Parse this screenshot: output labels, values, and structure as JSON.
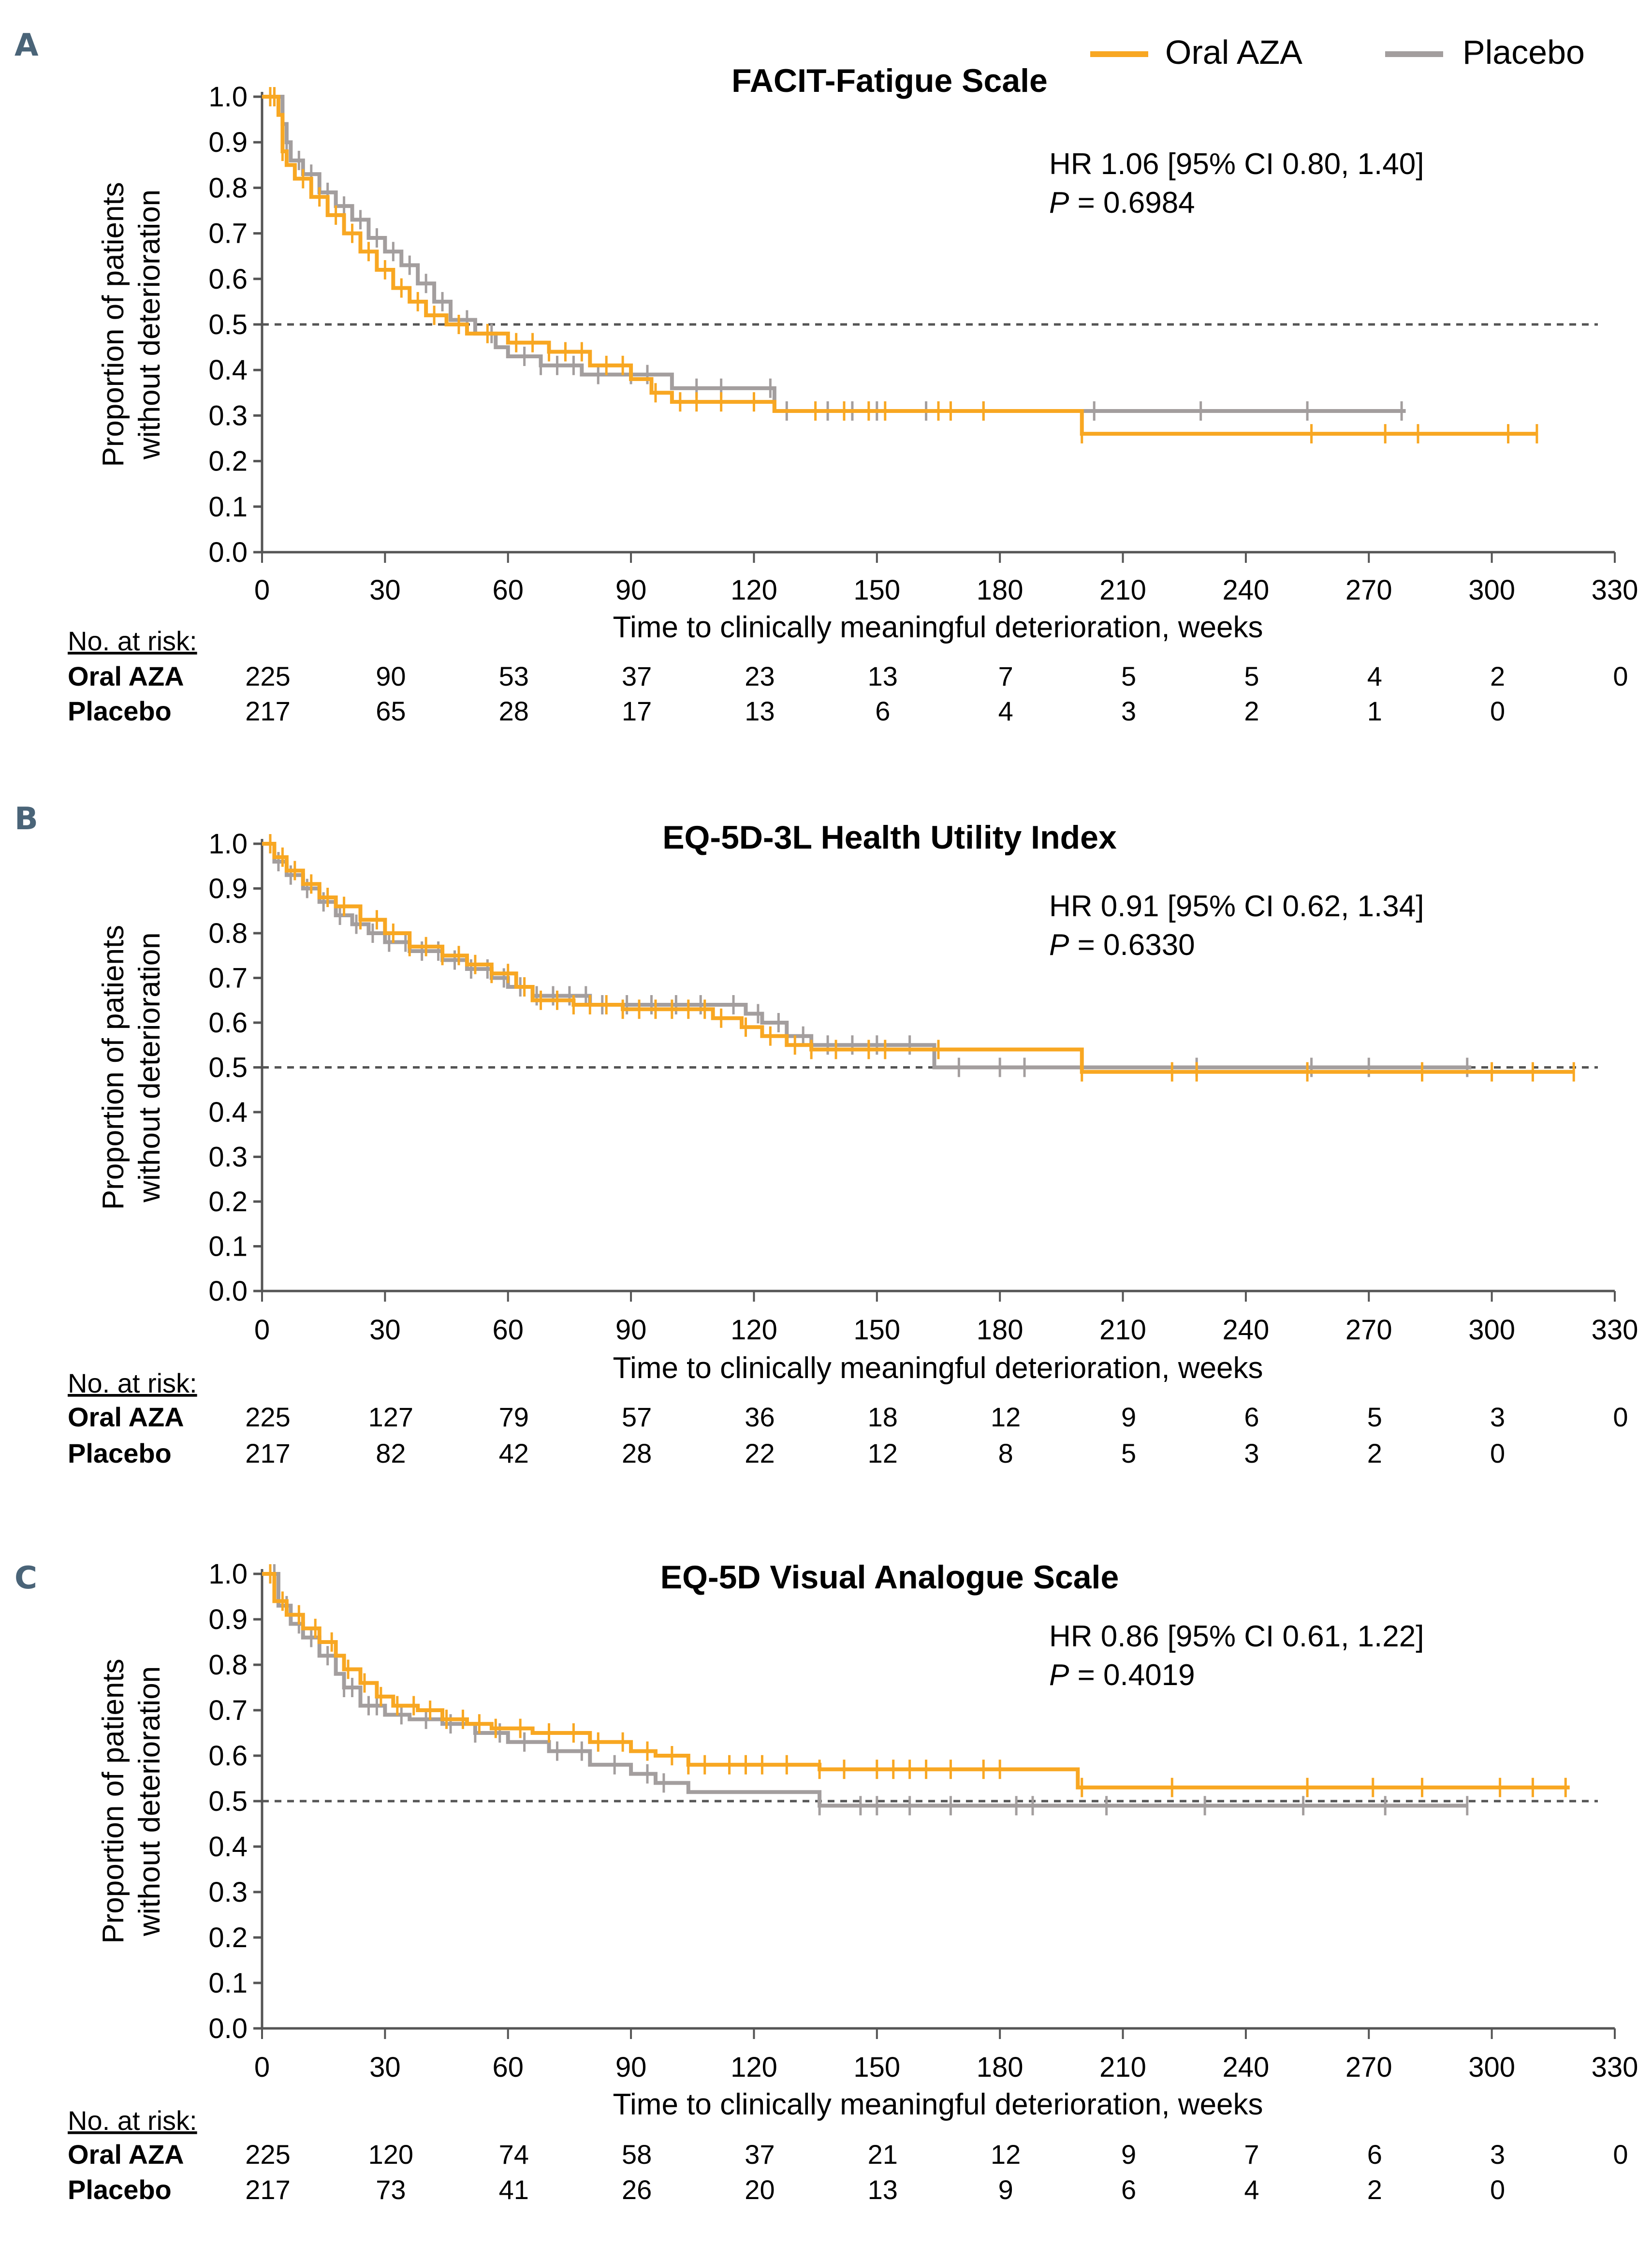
{
  "legend": {
    "series": [
      {
        "name": "Oral AZA",
        "color": "#F8A722"
      },
      {
        "name": "Placebo",
        "color": "#A39E9E"
      }
    ]
  },
  "colors": {
    "axis": "#555555",
    "reference_line": "#555555",
    "panel_letter": "#4A6478"
  },
  "chart_data": [
    {
      "panel": "A",
      "type": "line",
      "title": "FACIT-Fatigue Scale",
      "xlabel": "Time to clinically meaningful deterioration, weeks",
      "ylabel": "Proportion of patients without deterioration",
      "xlim": [
        0,
        330
      ],
      "ylim": [
        0,
        1.0
      ],
      "xticks": [
        0,
        30,
        60,
        90,
        120,
        150,
        180,
        210,
        240,
        270,
        300,
        330
      ],
      "yticks": [
        "0.0",
        "0.1",
        "0.2",
        "0.3",
        "0.4",
        "0.5",
        "0.6",
        "0.7",
        "0.8",
        "0.9",
        "1.0"
      ],
      "reference_line": 0.5,
      "hr_text": "HR 1.06 [95% CI 0.80, 1.40]",
      "p_label": "P",
      "p_value": " = 0.6984",
      "series": [
        {
          "name": "Oral AZA",
          "steps": [
            [
              0,
              1.0
            ],
            [
              4,
              0.96
            ],
            [
              5,
              0.88
            ],
            [
              6,
              0.85
            ],
            [
              8,
              0.82
            ],
            [
              12,
              0.78
            ],
            [
              16,
              0.74
            ],
            [
              20,
              0.7
            ],
            [
              24,
              0.66
            ],
            [
              28,
              0.62
            ],
            [
              32,
              0.58
            ],
            [
              36,
              0.55
            ],
            [
              40,
              0.52
            ],
            [
              45,
              0.5
            ],
            [
              50,
              0.48
            ],
            [
              60,
              0.46
            ],
            [
              70,
              0.44
            ],
            [
              80,
              0.41
            ],
            [
              90,
              0.38
            ],
            [
              95,
              0.35
            ],
            [
              100,
              0.33
            ],
            [
              125,
              0.31
            ],
            [
              200,
              0.26
            ],
            [
              311,
              0.26
            ]
          ],
          "censor": [
            2,
            3,
            5,
            10,
            14,
            18,
            22,
            26,
            30,
            34,
            38,
            42,
            48,
            55,
            62,
            66,
            70,
            74,
            78,
            84,
            88,
            96,
            102,
            106,
            112,
            120,
            135,
            142,
            148,
            152,
            165,
            168,
            176,
            200,
            256,
            274,
            282,
            304,
            311
          ]
        },
        {
          "name": "Placebo",
          "steps": [
            [
              0,
              1.0
            ],
            [
              5,
              0.94
            ],
            [
              6,
              0.9
            ],
            [
              7,
              0.86
            ],
            [
              10,
              0.83
            ],
            [
              14,
              0.79
            ],
            [
              18,
              0.76
            ],
            [
              22,
              0.73
            ],
            [
              26,
              0.69
            ],
            [
              30,
              0.66
            ],
            [
              34,
              0.63
            ],
            [
              38,
              0.59
            ],
            [
              42,
              0.55
            ],
            [
              46,
              0.51
            ],
            [
              52,
              0.48
            ],
            [
              57,
              0.45
            ],
            [
              60,
              0.43
            ],
            [
              68,
              0.41
            ],
            [
              78,
              0.39
            ],
            [
              100,
              0.36
            ],
            [
              125,
              0.31
            ],
            [
              279,
              0.31
            ]
          ],
          "censor": [
            3,
            6,
            9,
            12,
            16,
            20,
            24,
            28,
            32,
            36,
            40,
            44,
            50,
            56,
            64,
            68,
            72,
            76,
            82,
            90,
            94,
            106,
            112,
            124,
            128,
            138,
            144,
            150,
            162,
            176,
            203,
            229,
            255,
            278
          ]
        }
      ],
      "at_risk": {
        "label": "No. at risk:",
        "rows": [
          {
            "name": "Oral AZA",
            "values": [
              "225",
              "90",
              "53",
              "37",
              "23",
              "13",
              "7",
              "5",
              "5",
              "4",
              "2",
              "0"
            ]
          },
          {
            "name": "Placebo",
            "values": [
              "217",
              "65",
              "28",
              "17",
              "13",
              "6",
              "4",
              "3",
              "2",
              "1",
              "0",
              ""
            ]
          }
        ]
      }
    },
    {
      "panel": "B",
      "type": "line",
      "title": "EQ-5D-3L Health Utility Index",
      "xlabel": "Time to clinically meaningful deterioration, weeks",
      "ylabel": "Proportion of patients without deterioration",
      "xlim": [
        0,
        330
      ],
      "ylim": [
        0,
        1.0
      ],
      "xticks": [
        0,
        30,
        60,
        90,
        120,
        150,
        180,
        210,
        240,
        270,
        300,
        330
      ],
      "yticks": [
        "0.0",
        "0.1",
        "0.2",
        "0.3",
        "0.4",
        "0.5",
        "0.6",
        "0.7",
        "0.8",
        "0.9",
        "1.0"
      ],
      "reference_line": 0.5,
      "hr_text": "HR 0.91 [95% CI 0.62, 1.34]",
      "p_label": "P",
      "p_value": " = 0.6330",
      "series": [
        {
          "name": "Oral AZA",
          "steps": [
            [
              0,
              1.0
            ],
            [
              3,
              0.97
            ],
            [
              6,
              0.94
            ],
            [
              10,
              0.91
            ],
            [
              14,
              0.88
            ],
            [
              18,
              0.86
            ],
            [
              24,
              0.83
            ],
            [
              30,
              0.8
            ],
            [
              36,
              0.77
            ],
            [
              44,
              0.75
            ],
            [
              50,
              0.73
            ],
            [
              56,
              0.71
            ],
            [
              62,
              0.68
            ],
            [
              66,
              0.65
            ],
            [
              76,
              0.64
            ],
            [
              88,
              0.63
            ],
            [
              110,
              0.61
            ],
            [
              117,
              0.59
            ],
            [
              122,
              0.57
            ],
            [
              128,
              0.55
            ],
            [
              134,
              0.54
            ],
            [
              200,
              0.49
            ],
            [
              320,
              0.49
            ]
          ],
          "censor": [
            2,
            5,
            8,
            12,
            16,
            20,
            24,
            28,
            32,
            36,
            40,
            44,
            48,
            52,
            56,
            60,
            64,
            68,
            72,
            76,
            80,
            84,
            88,
            92,
            96,
            100,
            104,
            108,
            112,
            118,
            124,
            130,
            134,
            140,
            148,
            152,
            165,
            200,
            222,
            228,
            255,
            283,
            300,
            310,
            320
          ]
        },
        {
          "name": "Placebo",
          "steps": [
            [
              0,
              1.0
            ],
            [
              3,
              0.96
            ],
            [
              6,
              0.93
            ],
            [
              10,
              0.9
            ],
            [
              14,
              0.87
            ],
            [
              18,
              0.84
            ],
            [
              22,
              0.82
            ],
            [
              26,
              0.8
            ],
            [
              30,
              0.78
            ],
            [
              36,
              0.76
            ],
            [
              44,
              0.74
            ],
            [
              50,
              0.72
            ],
            [
              56,
              0.7
            ],
            [
              60,
              0.68
            ],
            [
              66,
              0.66
            ],
            [
              80,
              0.64
            ],
            [
              118,
              0.62
            ],
            [
              122,
              0.6
            ],
            [
              128,
              0.57
            ],
            [
              134,
              0.55
            ],
            [
              164,
              0.5
            ],
            [
              295,
              0.5
            ]
          ],
          "censor": [
            2,
            4,
            7,
            11,
            15,
            19,
            23,
            27,
            31,
            35,
            39,
            43,
            47,
            51,
            55,
            59,
            63,
            67,
            71,
            75,
            79,
            83,
            89,
            95,
            101,
            107,
            115,
            121,
            126,
            132,
            138,
            144,
            150,
            158,
            170,
            180,
            186,
            228,
            256,
            270,
            294
          ]
        }
      ],
      "at_risk": {
        "label": "No. at risk:",
        "rows": [
          {
            "name": "Oral AZA",
            "values": [
              "225",
              "127",
              "79",
              "57",
              "36",
              "18",
              "12",
              "9",
              "6",
              "5",
              "3",
              "0"
            ]
          },
          {
            "name": "Placebo",
            "values": [
              "217",
              "82",
              "42",
              "28",
              "22",
              "12",
              "8",
              "5",
              "3",
              "2",
              "0",
              ""
            ]
          }
        ]
      }
    },
    {
      "panel": "C",
      "type": "line",
      "title": "EQ-5D Visual Analogue Scale",
      "xlabel": "Time to clinically meaningful deterioration, weeks",
      "ylabel": "Proportion of patients without deterioration",
      "xlim": [
        0,
        330
      ],
      "ylim": [
        0,
        1.0
      ],
      "xticks": [
        0,
        30,
        60,
        90,
        120,
        150,
        180,
        210,
        240,
        270,
        300,
        330
      ],
      "yticks": [
        "0.0",
        "0.1",
        "0.2",
        "0.3",
        "0.4",
        "0.5",
        "0.6",
        "0.7",
        "0.8",
        "0.9",
        "1.0"
      ],
      "reference_line": 0.5,
      "hr_text": "HR 0.86 [95% CI 0.61, 1.22]",
      "p_label": "P",
      "p_value": " = 0.4019",
      "series": [
        {
          "name": "Oral AZA",
          "steps": [
            [
              0,
              1.0
            ],
            [
              3,
              0.94
            ],
            [
              6,
              0.91
            ],
            [
              10,
              0.88
            ],
            [
              14,
              0.85
            ],
            [
              18,
              0.82
            ],
            [
              20,
              0.79
            ],
            [
              24,
              0.76
            ],
            [
              28,
              0.73
            ],
            [
              32,
              0.71
            ],
            [
              38,
              0.7
            ],
            [
              44,
              0.68
            ],
            [
              50,
              0.67
            ],
            [
              56,
              0.66
            ],
            [
              66,
              0.65
            ],
            [
              80,
              0.63
            ],
            [
              90,
              0.61
            ],
            [
              96,
              0.6
            ],
            [
              104,
              0.58
            ],
            [
              136,
              0.57
            ],
            [
              199,
              0.53
            ],
            [
              319,
              0.53
            ]
          ],
          "censor": [
            2,
            5,
            9,
            13,
            17,
            21,
            25,
            29,
            33,
            37,
            41,
            45,
            49,
            53,
            57,
            63,
            70,
            76,
            82,
            88,
            94,
            100,
            104,
            108,
            114,
            118,
            122,
            128,
            136,
            142,
            150,
            154,
            158,
            162,
            168,
            176,
            180,
            200,
            222,
            255,
            271,
            283,
            302,
            310,
            318
          ]
        },
        {
          "name": "Placebo",
          "steps": [
            [
              0,
              1.0
            ],
            [
              4,
              0.93
            ],
            [
              7,
              0.89
            ],
            [
              10,
              0.86
            ],
            [
              14,
              0.82
            ],
            [
              18,
              0.78
            ],
            [
              20,
              0.75
            ],
            [
              24,
              0.71
            ],
            [
              30,
              0.69
            ],
            [
              36,
              0.68
            ],
            [
              44,
              0.67
            ],
            [
              52,
              0.65
            ],
            [
              60,
              0.63
            ],
            [
              70,
              0.61
            ],
            [
              80,
              0.58
            ],
            [
              90,
              0.56
            ],
            [
              96,
              0.54
            ],
            [
              104,
              0.52
            ],
            [
              136,
              0.49
            ],
            [
              294,
              0.49
            ]
          ],
          "censor": [
            3,
            6,
            9,
            12,
            16,
            20,
            22,
            26,
            28,
            34,
            40,
            46,
            52,
            58,
            64,
            72,
            78,
            86,
            94,
            98,
            136,
            146,
            150,
            158,
            168,
            184,
            188,
            206,
            230,
            254,
            274,
            294
          ]
        }
      ],
      "at_risk": {
        "label": "No. at risk:",
        "rows": [
          {
            "name": "Oral AZA",
            "values": [
              "225",
              "120",
              "74",
              "58",
              "37",
              "21",
              "12",
              "9",
              "7",
              "6",
              "3",
              "0"
            ]
          },
          {
            "name": "Placebo",
            "values": [
              "217",
              "73",
              "41",
              "26",
              "20",
              "13",
              "9",
              "6",
              "4",
              "2",
              "0",
              ""
            ]
          }
        ]
      }
    }
  ]
}
